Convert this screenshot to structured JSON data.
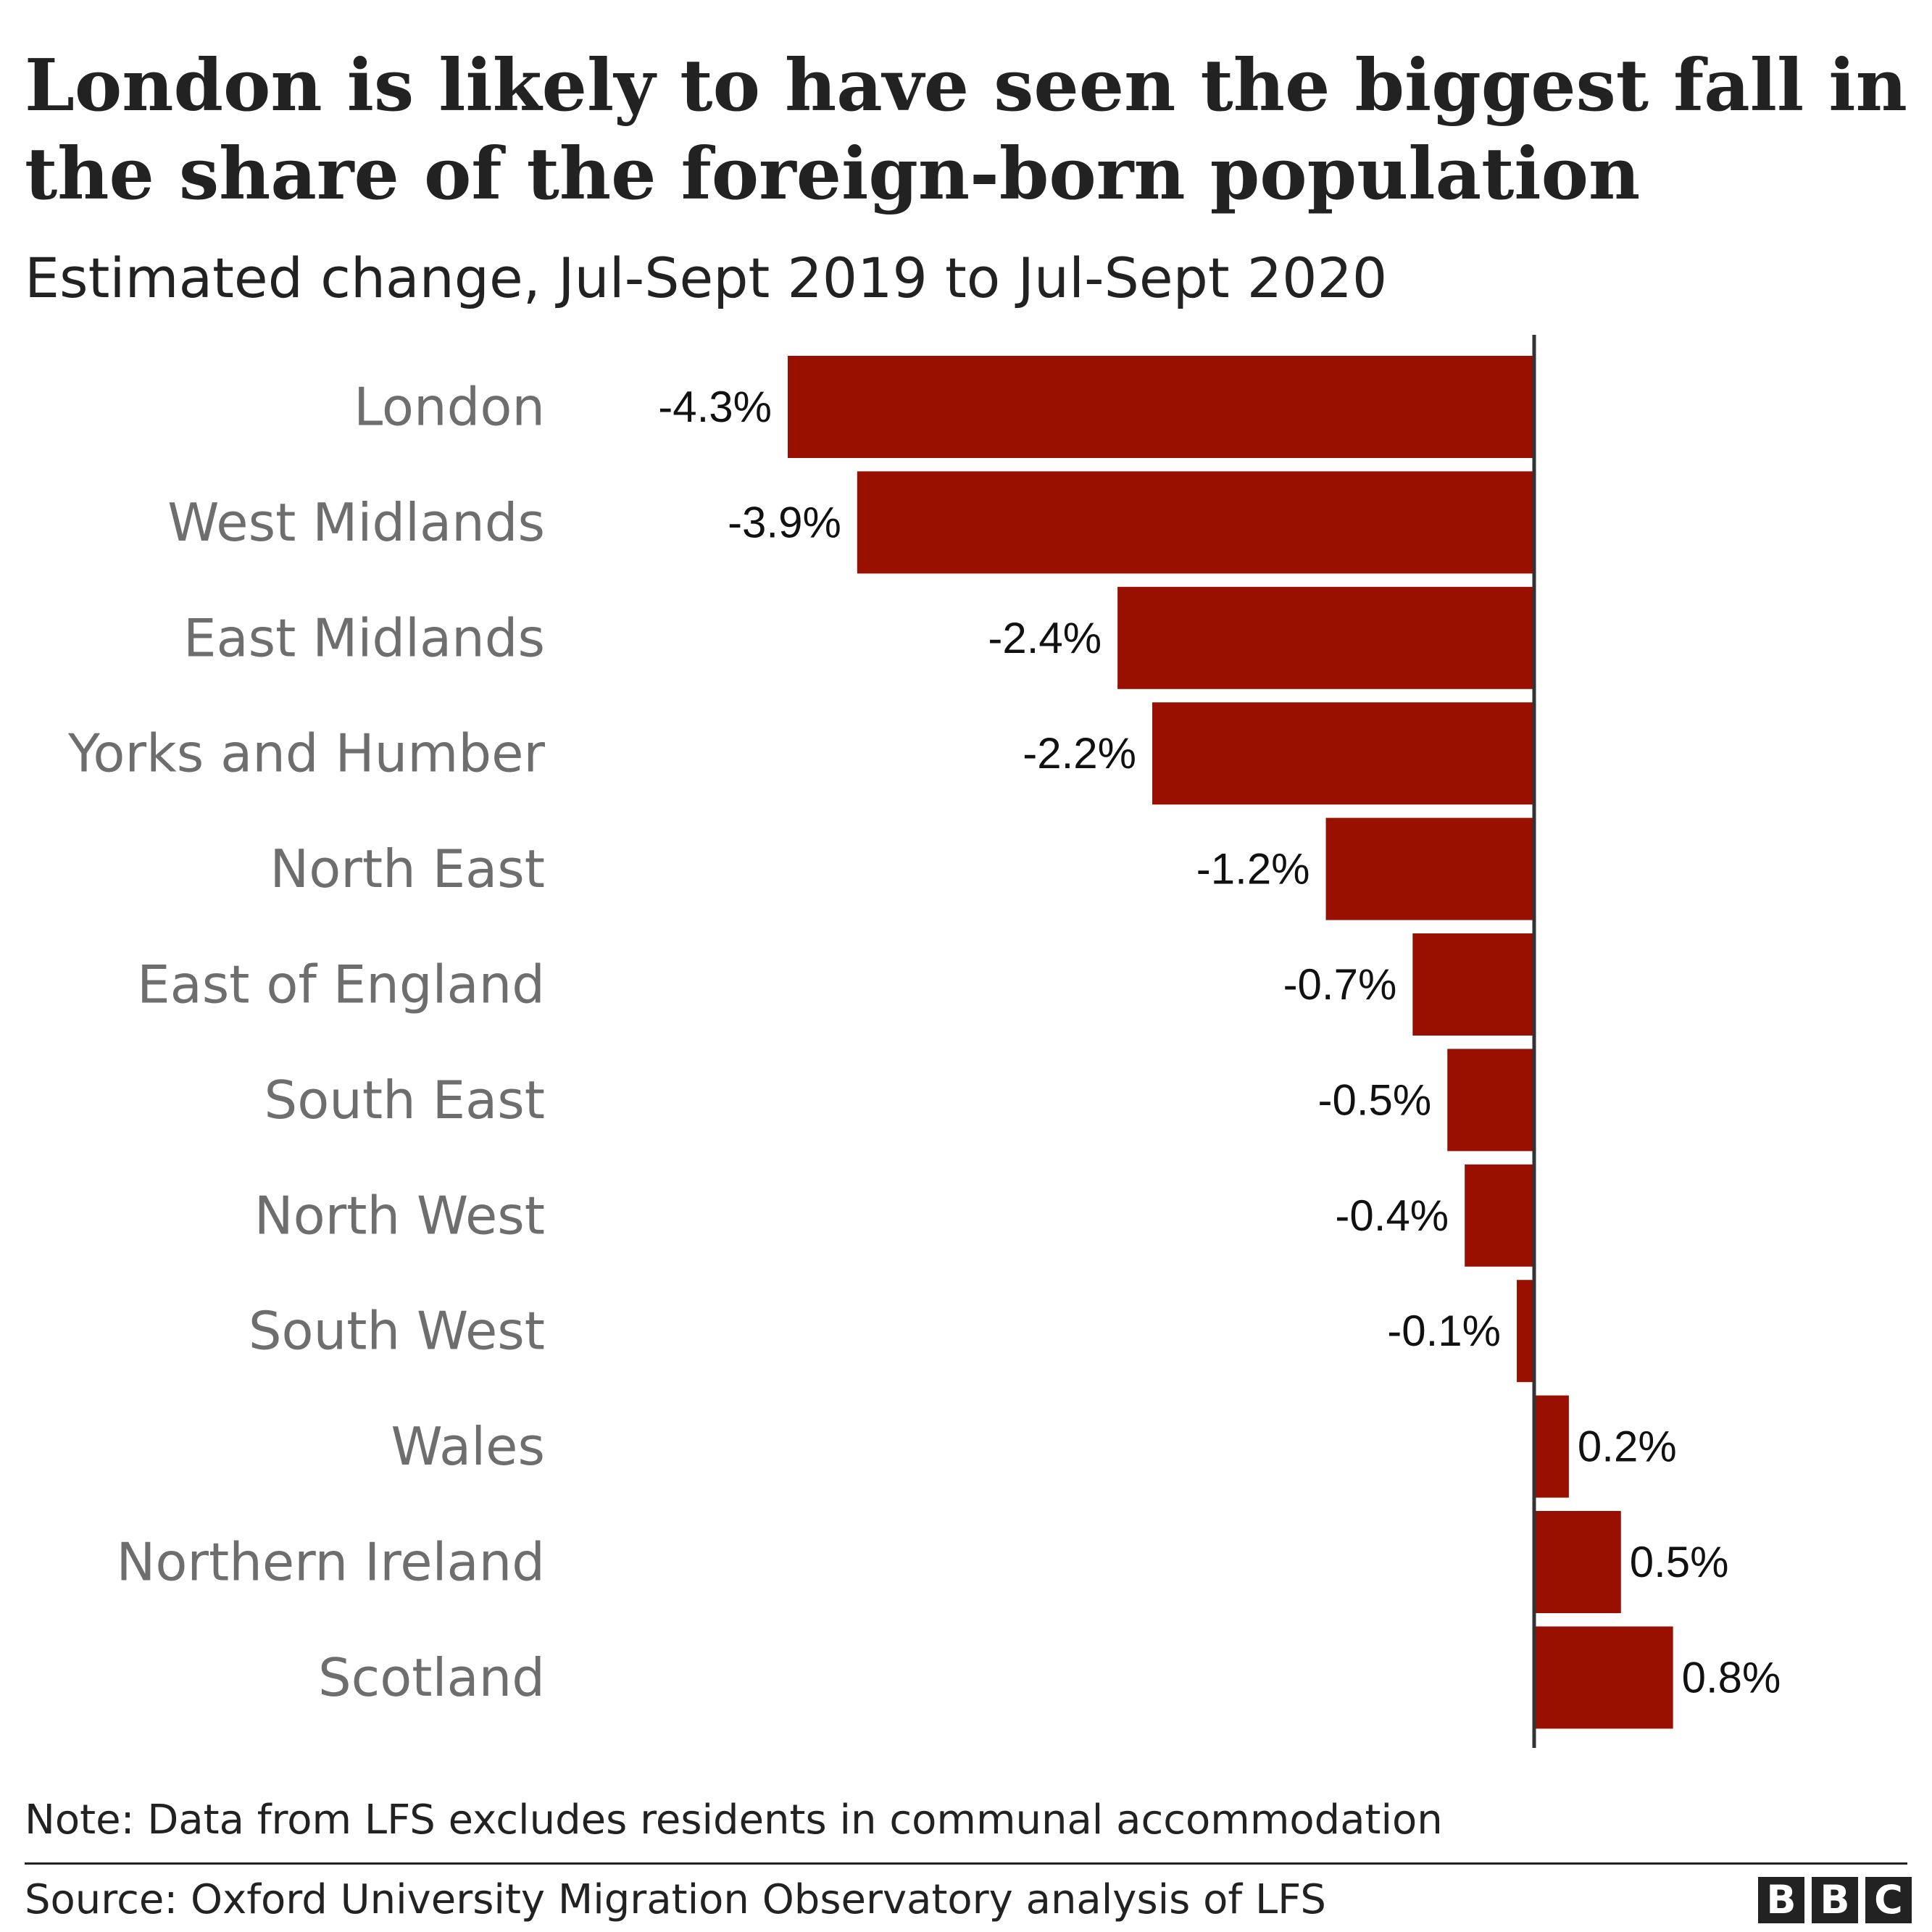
{
  "header": {
    "title": "London is likely to have seen the biggest fall in the share of the foreign-born population",
    "subtitle": "Estimated change, Jul-Sept 2019 to Jul-Sept 2020"
  },
  "chart_data": {
    "type": "bar",
    "orientation": "horizontal",
    "title": "London is likely to have seen the biggest fall in the share of the foreign-born population",
    "subtitle": "Estimated change, Jul-Sept 2019 to Jul-Sept 2020",
    "categories": [
      "London",
      "West Midlands",
      "East Midlands",
      "Yorks and Humber",
      "North East",
      "East of England",
      "South East",
      "North West",
      "South West",
      "Wales",
      "Northern Ireland",
      "Scotland"
    ],
    "values": [
      -4.3,
      -3.9,
      -2.4,
      -2.2,
      -1.2,
      -0.7,
      -0.5,
      -0.4,
      -0.1,
      0.2,
      0.5,
      0.8
    ],
    "value_labels": [
      "-4.3%",
      "-3.9%",
      "-2.4%",
      "-2.2%",
      "-1.2%",
      "-0.7%",
      "-0.5%",
      "-0.4%",
      "-0.1%",
      "0.2%",
      "0.5%",
      "0.8%"
    ],
    "unit": "%",
    "xlim": [
      -4.3,
      0.8
    ],
    "grid": false,
    "legend": "none",
    "bar_color": "#990f00",
    "axis_color": "#333333"
  },
  "footer": {
    "note": "Note: Data from LFS excludes residents in communal accommodation",
    "source": "Source: Oxford University Migration Observatory analysis of LFS",
    "logo_letters": [
      "B",
      "B",
      "C"
    ]
  }
}
